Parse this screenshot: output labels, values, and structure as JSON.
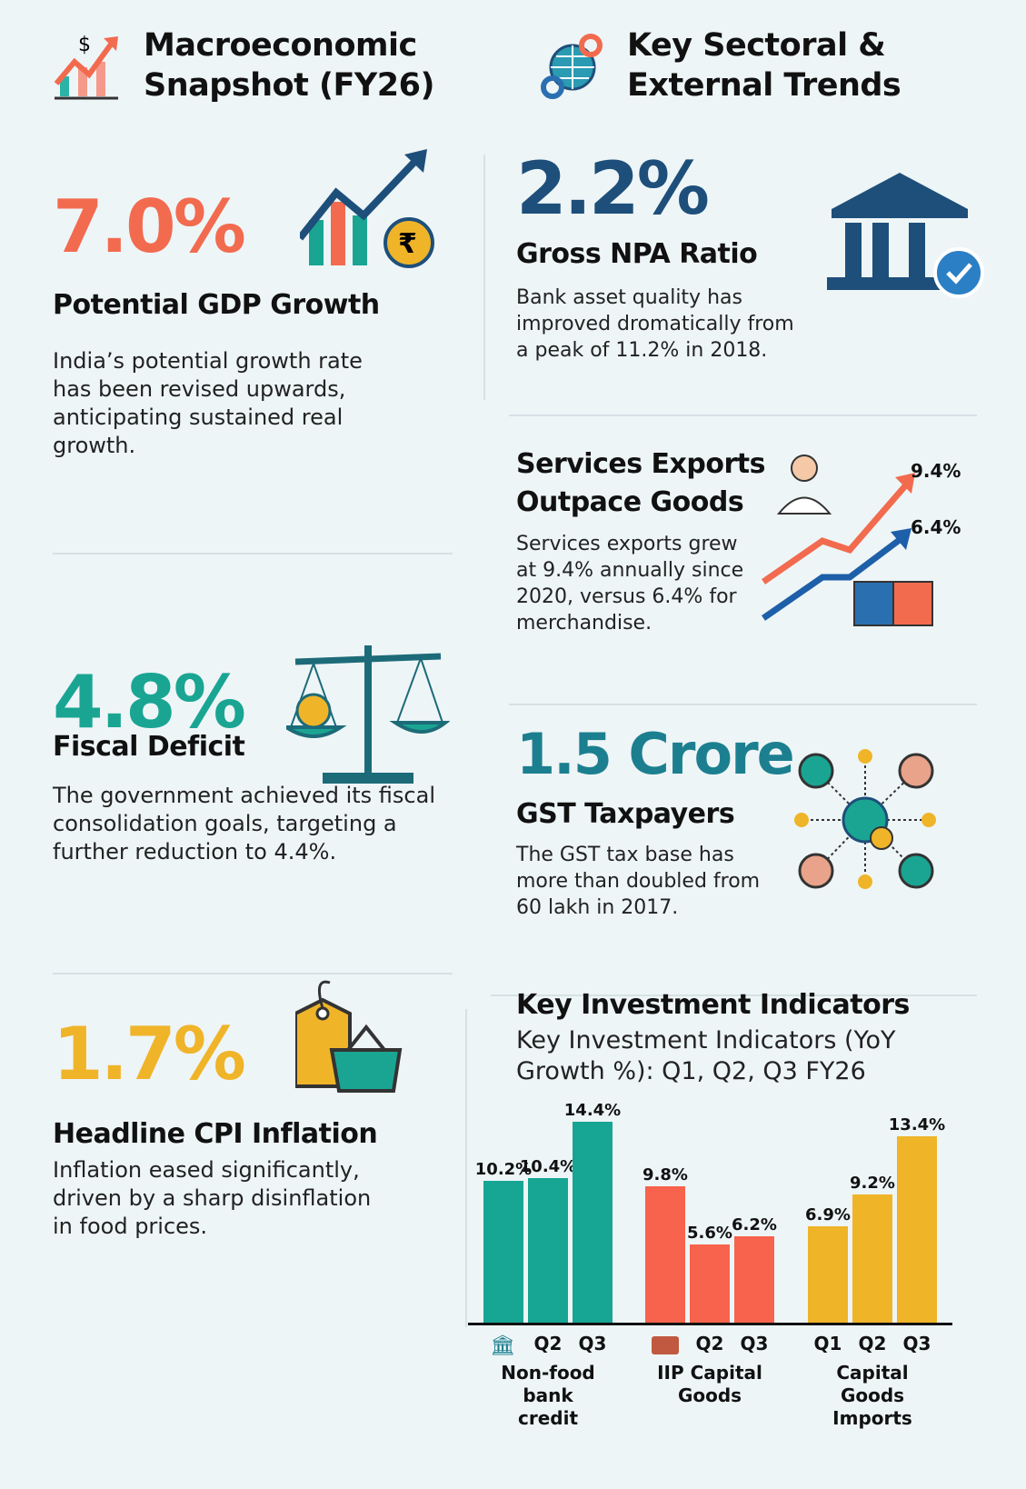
{
  "left_header": {
    "line1": "Macroeconomic",
    "line2": "Snapshot (FY26)",
    "icon": "chart-dollar-icon"
  },
  "right_header": {
    "line1": "Key Sectoral &",
    "line2": "External Trends",
    "icon": "globe-gears-icon"
  },
  "gdp": {
    "value": "7.0%",
    "title": "Potential GDP Growth",
    "text": "India’s potential growth rate has been revised upwards, anticipating sustained real growth.",
    "color": "#f26b4f"
  },
  "fiscal": {
    "value": "4.8%",
    "title": "Fiscal Deficit",
    "text": "The government achieved its fiscal consolidation goals, targeting a further reduction to 4.4%.",
    "color": "#1aa593"
  },
  "cpi": {
    "value": "1.7%",
    "title": "Headline CPI Inflation",
    "text": "Inflation eased significantly, driven by a sharp disinflation in food prices.",
    "color": "#f0b429"
  },
  "npa": {
    "value": "2.2%",
    "title": "Gross NPA Ratio",
    "text": "Bank asset quality has improved dromatically from a peak of 11.2% in 2018.",
    "color": "#1d4f7a"
  },
  "services": {
    "title1": "Services Exports",
    "title2": "Outpace Goods",
    "text": "Services exports grew at 9.4% annually since 2020, versus 6.4% for merchandise.",
    "label_services": "9.4%",
    "label_goods": "6.4%"
  },
  "gst": {
    "value": "1.5 Crore",
    "title": "GST Taxpayers",
    "text": "The GST tax base has more than doubled from 60 lakh in 2017.",
    "color": "#1c7f8f"
  },
  "chart_data": {
    "type": "bar",
    "title": "Key Investment Indicators",
    "subtitle": "Key Investment Indicators (YoY Growth %): Q1, Q2, Q3 FY26",
    "ylim": [
      0,
      15
    ],
    "grid": false,
    "groups": [
      {
        "name": "Non-food bank credit",
        "color": "#17a594",
        "ticks": [
          "",
          "Q2",
          "Q3"
        ],
        "values": [
          10.2,
          10.4,
          14.4
        ],
        "labels": [
          "10.2%",
          "10.4%",
          "14.4%"
        ]
      },
      {
        "name": "IIP Capital Goods",
        "color": "#f7634c",
        "ticks": [
          "",
          "Q2",
          "Q3"
        ],
        "values": [
          9.8,
          5.6,
          6.2
        ],
        "labels": [
          "9.8%",
          "5.6%",
          "6.2%"
        ]
      },
      {
        "name": "Capital Goods Imports",
        "color": "#f0b429",
        "ticks": [
          "Q1",
          "Q2",
          "Q3"
        ],
        "values": [
          6.9,
          9.2,
          13.4
        ],
        "labels": [
          "6.9%",
          "9.2%",
          "13.4%"
        ]
      }
    ]
  }
}
